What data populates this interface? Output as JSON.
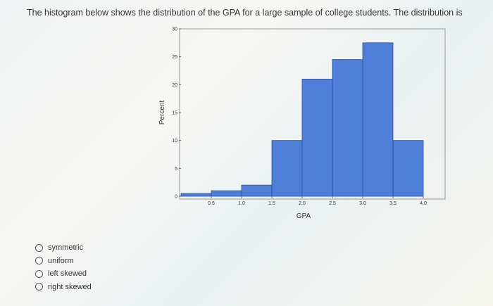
{
  "question": {
    "text": "The histogram below shows the distribution of the GPA for a large sample of college students. The distribution is"
  },
  "chart_data": {
    "type": "bar",
    "title": "",
    "xlabel": "GPA",
    "ylabel": "Percent",
    "bins": [
      {
        "start": 0.0,
        "end": 0.5,
        "value": 0.5
      },
      {
        "start": 0.5,
        "end": 1.0,
        "value": 1.0
      },
      {
        "start": 1.0,
        "end": 1.5,
        "value": 2.0
      },
      {
        "start": 1.5,
        "end": 2.0,
        "value": 10.0
      },
      {
        "start": 2.0,
        "end": 2.5,
        "value": 21.0
      },
      {
        "start": 2.5,
        "end": 3.0,
        "value": 24.5
      },
      {
        "start": 3.0,
        "end": 3.5,
        "value": 27.5
      },
      {
        "start": 3.5,
        "end": 4.0,
        "value": 10.0
      }
    ],
    "xticks": [
      "0.5",
      "1.0",
      "1.5",
      "2.0",
      "2.5",
      "3.0",
      "3.5",
      "4.0"
    ],
    "yticks": [
      "0",
      "5",
      "10",
      "15",
      "20",
      "25",
      "30"
    ],
    "xlim": [
      0,
      4.0
    ],
    "ylim": [
      0,
      30
    ],
    "bar_color": "#4f7fd8"
  },
  "options": [
    {
      "label": "symmetric"
    },
    {
      "label": "uniform"
    },
    {
      "label": "left skewed"
    },
    {
      "label": "right skewed"
    }
  ]
}
